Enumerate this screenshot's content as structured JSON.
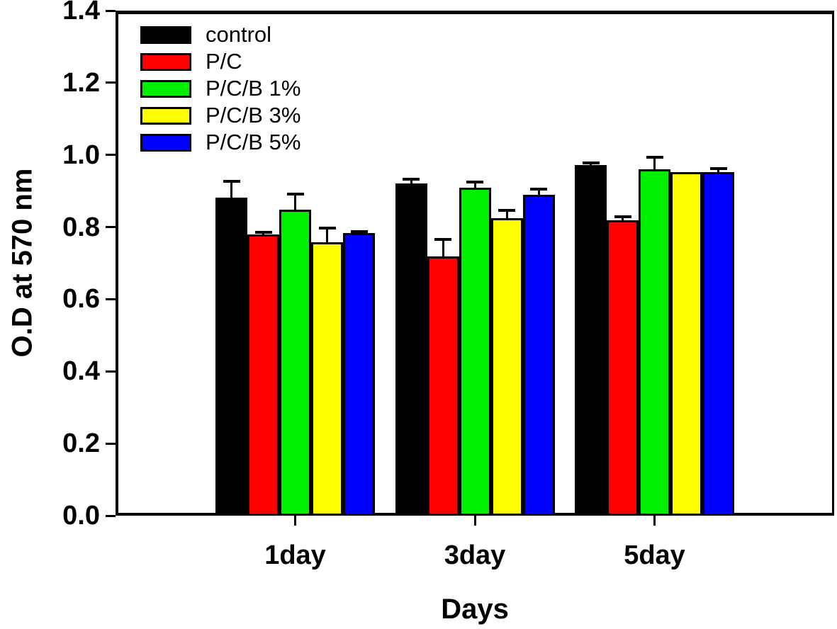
{
  "chart_data": {
    "type": "bar",
    "xlabel": "Days",
    "ylabel": "O.D at 570 nm",
    "categories": [
      "1day",
      "3day",
      "5day"
    ],
    "series": [
      {
        "name": "control",
        "color": "#000000",
        "values": [
          0.881,
          0.92,
          0.971
        ],
        "errors": [
          0.045,
          0.012,
          0.007
        ]
      },
      {
        "name": "P/C",
        "color": "#ff0000",
        "values": [
          0.78,
          0.718,
          0.818
        ],
        "errors": [
          0.006,
          0.047,
          0.01
        ]
      },
      {
        "name": "P/C/B 1%",
        "color": "#00ee00",
        "values": [
          0.849,
          0.91,
          0.961
        ],
        "errors": [
          0.042,
          0.014,
          0.033
        ]
      },
      {
        "name": "P/C/B 3%",
        "color": "#ffff00",
        "values": [
          0.757,
          0.825,
          0.953
        ],
        "errors": [
          0.041,
          0.021,
          0
        ]
      },
      {
        "name": "P/C/B 5%",
        "color": "#0000ff",
        "values": [
          0.783,
          0.889,
          0.953
        ],
        "errors": [
          0.005,
          0.016,
          0.009
        ]
      }
    ],
    "ylim": [
      0.0,
      1.4
    ],
    "yticks": [
      "0.0",
      "0.2",
      "0.4",
      "0.6",
      "0.8",
      "1.0",
      "1.2",
      "1.4"
    ],
    "ytick_step": 0.2,
    "legend_position": "top-left",
    "grid": false,
    "error_bars": "upper-one-sided",
    "background": "#ffffff"
  }
}
